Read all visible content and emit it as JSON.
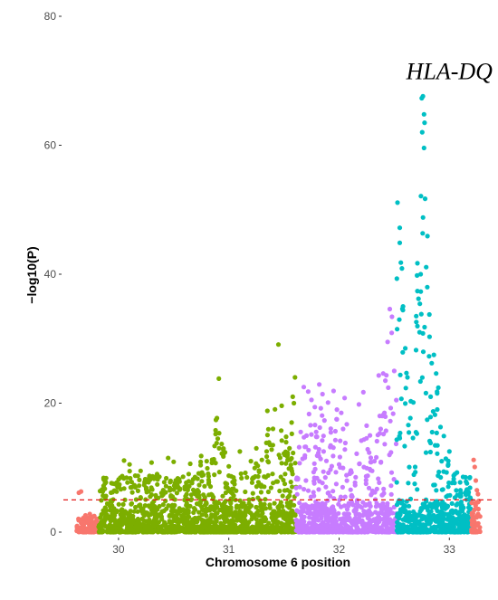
{
  "chart_data": {
    "type": "scatter",
    "title": "",
    "xlabel": "Chromosome 6 position",
    "ylabel": "−log10(P)",
    "xlim": [
      29.5,
      33.4
    ],
    "ylim": [
      0,
      80
    ],
    "x_ticks": [
      30,
      31,
      32,
      33
    ],
    "y_ticks": [
      0,
      20,
      40,
      60,
      80
    ],
    "grid": false,
    "legend": "none",
    "annotation": {
      "text": "HLA-DQ",
      "x": 33.0,
      "y": 71.5
    },
    "threshold": {
      "y": 5.0,
      "color": "#e31a1c",
      "style": "dashed"
    },
    "colors": {
      "segment1": "#F8766D",
      "segment2": "#7CAE00",
      "segment3": "#C77CFF",
      "segment4": "#00BFC4"
    },
    "series": [
      {
        "color_key": "segment1",
        "x_range": [
          29.62,
          29.82
        ],
        "base_max": 2.4,
        "points": [
          {
            "x": 29.66,
            "y": 6.3
          },
          {
            "x": 29.64,
            "y": 6.1
          },
          {
            "x": 29.7,
            "y": 2.6
          },
          {
            "x": 29.74,
            "y": 2.8
          },
          {
            "x": 29.78,
            "y": 2.5
          }
        ]
      },
      {
        "color_key": "segment2",
        "x_range": [
          29.82,
          31.61
        ],
        "base_max": 4.5,
        "points": [
          {
            "x": 29.88,
            "y": 5.2
          },
          {
            "x": 29.93,
            "y": 4.9
          },
          {
            "x": 30.05,
            "y": 11.1
          },
          {
            "x": 30.1,
            "y": 10.5
          },
          {
            "x": 30.2,
            "y": 9.5
          },
          {
            "x": 30.3,
            "y": 10.8
          },
          {
            "x": 30.35,
            "y": 9.0
          },
          {
            "x": 30.45,
            "y": 11.5
          },
          {
            "x": 30.5,
            "y": 10.9
          },
          {
            "x": 30.55,
            "y": 8.2
          },
          {
            "x": 30.65,
            "y": 10.6
          },
          {
            "x": 30.75,
            "y": 11.8
          },
          {
            "x": 30.8,
            "y": 11.0
          },
          {
            "x": 30.88,
            "y": 15.2
          },
          {
            "x": 30.9,
            "y": 14.5
          },
          {
            "x": 30.91,
            "y": 23.8
          },
          {
            "x": 30.95,
            "y": 12.8
          },
          {
            "x": 31.0,
            "y": 10.2
          },
          {
            "x": 31.1,
            "y": 12.5
          },
          {
            "x": 31.2,
            "y": 11.0
          },
          {
            "x": 31.25,
            "y": 13.0
          },
          {
            "x": 31.3,
            "y": 11.2
          },
          {
            "x": 31.35,
            "y": 18.8
          },
          {
            "x": 31.4,
            "y": 13.5
          },
          {
            "x": 31.45,
            "y": 29.1
          },
          {
            "x": 31.48,
            "y": 14.2
          },
          {
            "x": 31.52,
            "y": 14.8
          },
          {
            "x": 31.55,
            "y": 13.0
          },
          {
            "x": 31.58,
            "y": 21.0
          },
          {
            "x": 31.59,
            "y": 20.0
          },
          {
            "x": 31.6,
            "y": 24.0
          },
          {
            "x": 31.57,
            "y": 17.0
          },
          {
            "x": 31.5,
            "y": 12.2
          },
          {
            "x": 30.25,
            "y": 7.8
          },
          {
            "x": 30.6,
            "y": 7.0
          },
          {
            "x": 31.15,
            "y": 9.2
          }
        ]
      },
      {
        "color_key": "segment3",
        "x_range": [
          31.61,
          32.52
        ],
        "base_max": 4.5,
        "points": [
          {
            "x": 31.68,
            "y": 22.5
          },
          {
            "x": 31.72,
            "y": 21.8
          },
          {
            "x": 31.75,
            "y": 20.5
          },
          {
            "x": 31.78,
            "y": 19.4
          },
          {
            "x": 31.82,
            "y": 22.9
          },
          {
            "x": 31.85,
            "y": 21.4
          },
          {
            "x": 31.9,
            "y": 20.1
          },
          {
            "x": 31.95,
            "y": 21.9
          },
          {
            "x": 31.98,
            "y": 19.0
          },
          {
            "x": 32.02,
            "y": 18.5
          },
          {
            "x": 32.05,
            "y": 20.8
          },
          {
            "x": 31.8,
            "y": 14.8
          },
          {
            "x": 31.86,
            "y": 12.5
          },
          {
            "x": 31.92,
            "y": 13.2
          },
          {
            "x": 32.0,
            "y": 10.5
          },
          {
            "x": 32.12,
            "y": 5.5
          },
          {
            "x": 32.18,
            "y": 19.8
          },
          {
            "x": 32.22,
            "y": 21.7
          },
          {
            "x": 32.25,
            "y": 16.5
          },
          {
            "x": 32.28,
            "y": 15.0
          },
          {
            "x": 32.32,
            "y": 11.0
          },
          {
            "x": 32.36,
            "y": 24.3
          },
          {
            "x": 32.4,
            "y": 24.6
          },
          {
            "x": 32.42,
            "y": 23.5
          },
          {
            "x": 32.44,
            "y": 29.5
          },
          {
            "x": 32.46,
            "y": 34.6
          },
          {
            "x": 32.48,
            "y": 33.4
          },
          {
            "x": 32.5,
            "y": 25.0
          },
          {
            "x": 31.7,
            "y": 8.0
          },
          {
            "x": 31.88,
            "y": 7.0
          },
          {
            "x": 32.15,
            "y": 8.5
          },
          {
            "x": 32.3,
            "y": 9.5
          }
        ]
      },
      {
        "color_key": "segment4",
        "x_range": [
          32.52,
          33.2
        ],
        "base_max": 4.8,
        "points": [
          {
            "x": 32.53,
            "y": 51.1
          },
          {
            "x": 32.55,
            "y": 47.2
          },
          {
            "x": 32.56,
            "y": 41.8
          },
          {
            "x": 32.57,
            "y": 40.9
          },
          {
            "x": 32.58,
            "y": 35.0
          },
          {
            "x": 32.6,
            "y": 28.5
          },
          {
            "x": 32.62,
            "y": 24.0
          },
          {
            "x": 32.65,
            "y": 20.3
          },
          {
            "x": 32.7,
            "y": 33.5
          },
          {
            "x": 32.71,
            "y": 41.7
          },
          {
            "x": 32.72,
            "y": 36.2
          },
          {
            "x": 32.73,
            "y": 31.0
          },
          {
            "x": 32.74,
            "y": 40.0
          },
          {
            "x": 32.75,
            "y": 67.3
          },
          {
            "x": 32.76,
            "y": 67.6
          },
          {
            "x": 32.77,
            "y": 64.8
          },
          {
            "x": 32.775,
            "y": 63.5
          },
          {
            "x": 32.78,
            "y": 51.7
          },
          {
            "x": 32.79,
            "y": 41.1
          },
          {
            "x": 32.8,
            "y": 38.0
          },
          {
            "x": 32.82,
            "y": 30.3
          },
          {
            "x": 32.84,
            "y": 26.2
          },
          {
            "x": 32.86,
            "y": 27.5
          },
          {
            "x": 32.88,
            "y": 24.6
          },
          {
            "x": 32.9,
            "y": 22.4
          },
          {
            "x": 32.92,
            "y": 16.3
          },
          {
            "x": 32.95,
            "y": 14.9
          },
          {
            "x": 33.0,
            "y": 12.5
          },
          {
            "x": 33.05,
            "y": 9.0
          },
          {
            "x": 33.1,
            "y": 6.5
          },
          {
            "x": 33.15,
            "y": 5.8
          },
          {
            "x": 32.67,
            "y": 14.6
          },
          {
            "x": 32.69,
            "y": 10.1
          },
          {
            "x": 32.83,
            "y": 21.0
          },
          {
            "x": 32.87,
            "y": 18.2
          },
          {
            "x": 32.93,
            "y": 11.0
          }
        ]
      },
      {
        "color_key": "segment1",
        "x_range": [
          33.2,
          33.28
        ],
        "base_max": 5.0,
        "points": [
          {
            "x": 33.22,
            "y": 11.2
          },
          {
            "x": 33.23,
            "y": 10.1
          },
          {
            "x": 33.24,
            "y": 8.0
          },
          {
            "x": 33.25,
            "y": 6.5
          },
          {
            "x": 33.26,
            "y": 5.9
          }
        ]
      }
    ]
  }
}
